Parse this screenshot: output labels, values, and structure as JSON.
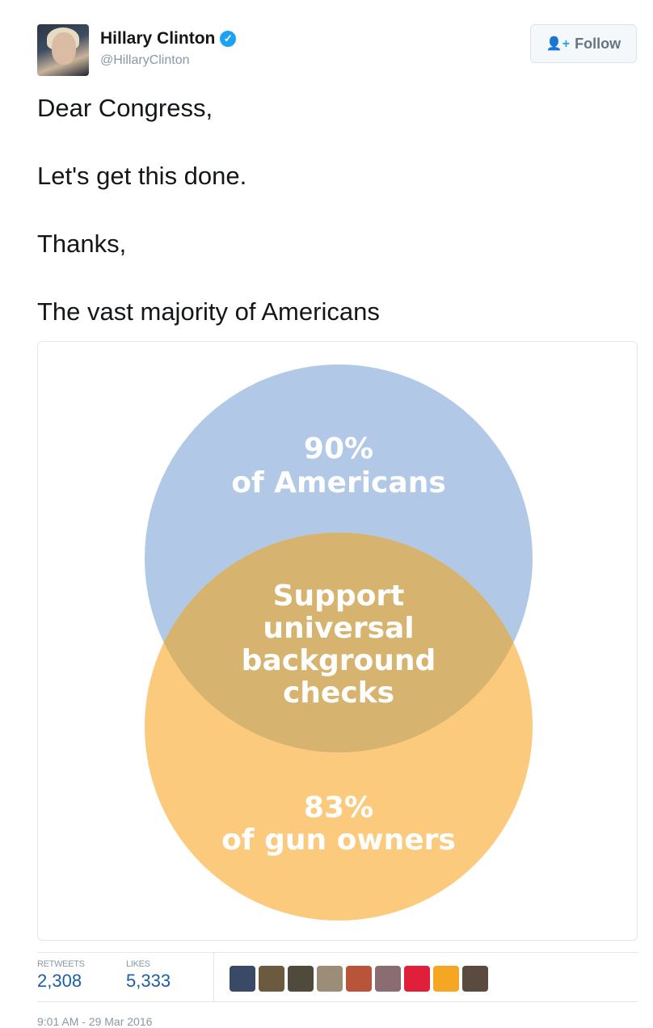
{
  "author": {
    "name": "Hillary Clinton",
    "handle": "@HillaryClinton",
    "verified_icon": "verified-badge-icon"
  },
  "follow_button": {
    "label": "Follow",
    "icon": "add-user-icon"
  },
  "tweet_lines": [
    "Dear Congress,",
    "Let's get this done.",
    "Thanks,",
    "The vast majority of Americans"
  ],
  "venn": {
    "top_value": "90%",
    "top_label": "of Americans",
    "overlap_lines": [
      "Support",
      "universal",
      "background",
      "checks"
    ],
    "bottom_value": "83%",
    "bottom_label": "of gun owners",
    "colors": {
      "top": "#b1c8e6",
      "bottom": "#fbca7c",
      "overlap": "#d6b46f"
    }
  },
  "stats": {
    "retweets_label": "RETWEETS",
    "retweets": "2,308",
    "likes_label": "LIKES",
    "likes": "5,333"
  },
  "likers": [
    "#3a4a66",
    "#6b5a3e",
    "#4f4a3c",
    "#9c8d78",
    "#b8543a",
    "#8c6c73",
    "#e0203a",
    "#f5a623",
    "#5a4a40"
  ],
  "timestamp": "9:01 AM - 29 Mar 2016"
}
